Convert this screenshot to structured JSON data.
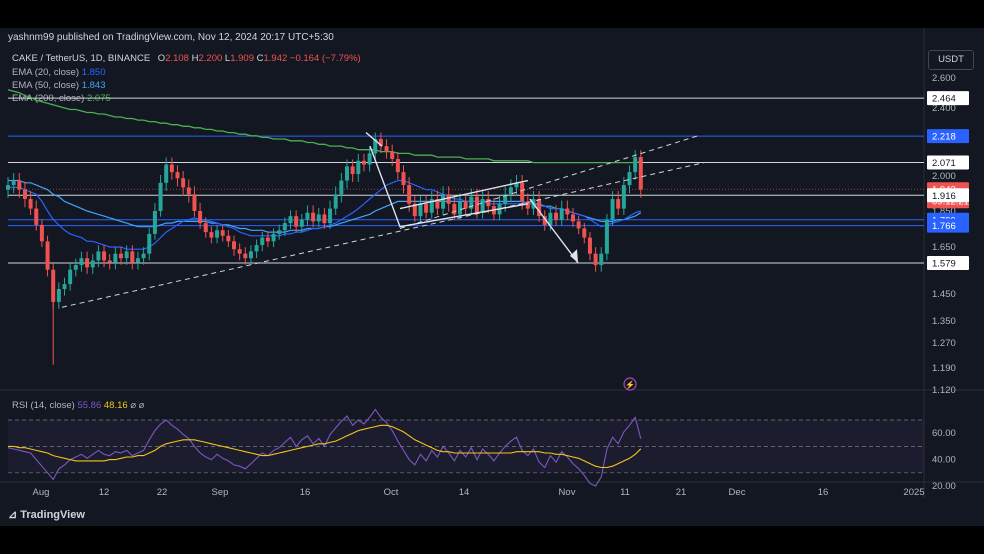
{
  "header": {
    "published": "yashnm99 published on TradingView.com, Nov 12, 2024 20:17 UTC+5:30"
  },
  "symbol_line": {
    "symbol": "CAKE / TetherUS, 1D, BINANCE",
    "open_label": "O",
    "open": "2.108",
    "high_label": "H",
    "high": "2.200",
    "low_label": "L",
    "low": "1.909",
    "close_label": "C",
    "close": "1.942",
    "change": "−0.164 (−7.79%)"
  },
  "legend": [
    {
      "label": "EMA (20, close)",
      "value": "1.850",
      "color": "#2962ff"
    },
    {
      "label": "EMA (50, close)",
      "value": "1.843",
      "color": "#42a5f5"
    },
    {
      "label": "EMA (200, close)",
      "value": "2.075",
      "color": "#4caf50"
    }
  ],
  "currency": "USDT",
  "rsi_legend": {
    "label": "RSI (14, close)",
    "rsi": "55.86",
    "ma": "48.16",
    "extra": "⌀ ⌀"
  },
  "brand": "TradingView",
  "colors": {
    "up": "#26a69a",
    "down": "#ef5350",
    "ema200": "#4caf50",
    "ema50": "#42a5f5",
    "ema20": "#2962ff",
    "rsi": "#7e57c2",
    "rsi_ma": "#f5c518"
  },
  "chart_data": {
    "type": "candlestick",
    "y_axis_ticks": [
      "2.600",
      "2.400",
      "2.200",
      "2.000",
      "1.850",
      "1.650",
      "1.450",
      "1.350",
      "1.270",
      "1.190",
      "1.120"
    ],
    "rsi_ticks": [
      "60.00",
      "40.00",
      "20.00"
    ],
    "x_axis_ticks": [
      "Aug",
      "12",
      "22",
      "Sep",
      "16",
      "Oct",
      "14",
      "Nov",
      "11",
      "21",
      "Dec",
      "16",
      "2025"
    ],
    "price_labels": [
      {
        "text": "2.464",
        "kind": "white"
      },
      {
        "text": "2.218",
        "kind": "blue"
      },
      {
        "text": "2.071",
        "kind": "white"
      },
      {
        "text": "1.942",
        "kind": "red"
      },
      {
        "text": "09:12:21",
        "kind": "red"
      },
      {
        "text": "1.916",
        "kind": "white"
      },
      {
        "text": "1.799",
        "kind": "blue"
      },
      {
        "text": "1.766",
        "kind": "blue"
      },
      {
        "text": "1.579",
        "kind": "white"
      }
    ],
    "horizontal_levels": [
      2.464,
      2.218,
      2.071,
      1.916,
      1.799,
      1.766,
      1.579
    ],
    "closes": [
      1.96,
      1.98,
      1.94,
      1.9,
      1.86,
      1.77,
      1.68,
      1.55,
      1.42,
      1.47,
      1.49,
      1.55,
      1.57,
      1.6,
      1.56,
      1.59,
      1.63,
      1.59,
      1.58,
      1.62,
      1.6,
      1.63,
      1.58,
      1.6,
      1.62,
      1.72,
      1.85,
      1.97,
      2.06,
      2.02,
      1.99,
      1.95,
      1.92,
      1.85,
      1.78,
      1.73,
      1.7,
      1.74,
      1.71,
      1.68,
      1.64,
      1.62,
      1.6,
      1.63,
      1.66,
      1.7,
      1.68,
      1.72,
      1.74,
      1.78,
      1.82,
      1.76,
      1.8,
      1.84,
      1.79,
      1.83,
      1.78,
      1.86,
      1.92,
      1.98,
      2.05,
      2.01,
      2.08,
      2.06,
      2.12,
      2.2,
      2.16,
      2.13,
      2.09,
      2.02,
      1.96,
      1.88,
      1.82,
      1.88,
      1.84,
      1.9,
      1.86,
      1.92,
      1.88,
      1.83,
      1.89,
      1.86,
      1.91,
      1.84,
      1.9,
      1.87,
      1.83,
      1.88,
      1.92,
      1.95,
      1.97,
      1.89,
      1.86,
      1.9,
      1.82,
      1.77,
      1.84,
      1.8,
      1.86,
      1.83,
      1.79,
      1.75,
      1.7,
      1.62,
      1.57,
      1.62,
      1.8,
      1.9,
      1.86,
      1.96,
      2.02,
      2.1,
      1.94
    ],
    "ema20": [
      1.95,
      1.95,
      1.95,
      1.94,
      1.93,
      1.92,
      1.89,
      1.85,
      1.8,
      1.77,
      1.74,
      1.72,
      1.71,
      1.7,
      1.68,
      1.68,
      1.67,
      1.66,
      1.65,
      1.65,
      1.65,
      1.64,
      1.64,
      1.64,
      1.64,
      1.65,
      1.67,
      1.7,
      1.73,
      1.75,
      1.77,
      1.79,
      1.8,
      1.81,
      1.8,
      1.8,
      1.79,
      1.78,
      1.77,
      1.76,
      1.75,
      1.73,
      1.72,
      1.71,
      1.71,
      1.71,
      1.71,
      1.71,
      1.71,
      1.72,
      1.72,
      1.73,
      1.73,
      1.74,
      1.75,
      1.75,
      1.76,
      1.77,
      1.78,
      1.8,
      1.82,
      1.84,
      1.86,
      1.88,
      1.9,
      1.92,
      1.94,
      1.96,
      1.97,
      1.98,
      1.98,
      1.97,
      1.96,
      1.95,
      1.94,
      1.94,
      1.93,
      1.92,
      1.91,
      1.9,
      1.9,
      1.89,
      1.89,
      1.89,
      1.89,
      1.88,
      1.88,
      1.88,
      1.88,
      1.88,
      1.88,
      1.88,
      1.88,
      1.88,
      1.87,
      1.87,
      1.86,
      1.86,
      1.86,
      1.85,
      1.84,
      1.83,
      1.82,
      1.8,
      1.78,
      1.76,
      1.77,
      1.78,
      1.79,
      1.8,
      1.82,
      1.84,
      1.85
    ],
    "ema50": [
      1.98,
      1.98,
      1.98,
      1.97,
      1.97,
      1.96,
      1.95,
      1.94,
      1.92,
      1.91,
      1.89,
      1.88,
      1.87,
      1.86,
      1.85,
      1.84,
      1.83,
      1.82,
      1.81,
      1.8,
      1.79,
      1.78,
      1.77,
      1.76,
      1.76,
      1.76,
      1.76,
      1.77,
      1.78,
      1.78,
      1.79,
      1.79,
      1.79,
      1.79,
      1.79,
      1.79,
      1.78,
      1.78,
      1.77,
      1.77,
      1.76,
      1.75,
      1.75,
      1.74,
      1.74,
      1.74,
      1.73,
      1.73,
      1.73,
      1.73,
      1.74,
      1.74,
      1.74,
      1.75,
      1.75,
      1.75,
      1.76,
      1.76,
      1.77,
      1.78,
      1.79,
      1.8,
      1.81,
      1.82,
      1.83,
      1.85,
      1.86,
      1.87,
      1.88,
      1.89,
      1.89,
      1.89,
      1.89,
      1.89,
      1.89,
      1.89,
      1.89,
      1.89,
      1.89,
      1.89,
      1.89,
      1.89,
      1.89,
      1.89,
      1.89,
      1.89,
      1.89,
      1.89,
      1.89,
      1.89,
      1.89,
      1.89,
      1.88,
      1.88,
      1.88,
      1.87,
      1.87,
      1.86,
      1.86,
      1.85,
      1.84,
      1.83,
      1.82,
      1.81,
      1.8,
      1.79,
      1.79,
      1.79,
      1.8,
      1.8,
      1.81,
      1.82,
      1.84
    ],
    "ema200": [
      2.52,
      2.51,
      2.5,
      2.48,
      2.47,
      2.45,
      2.44,
      2.43,
      2.42,
      2.41,
      2.4,
      2.39,
      2.39,
      2.38,
      2.37,
      2.37,
      2.36,
      2.36,
      2.35,
      2.34,
      2.34,
      2.33,
      2.33,
      2.32,
      2.32,
      2.31,
      2.31,
      2.3,
      2.3,
      2.29,
      2.29,
      2.28,
      2.28,
      2.27,
      2.27,
      2.26,
      2.26,
      2.25,
      2.25,
      2.24,
      2.24,
      2.23,
      2.23,
      2.22,
      2.22,
      2.21,
      2.21,
      2.2,
      2.2,
      2.2,
      2.19,
      2.19,
      2.19,
      2.18,
      2.18,
      2.17,
      2.17,
      2.16,
      2.16,
      2.16,
      2.15,
      2.15,
      2.14,
      2.14,
      2.14,
      2.14,
      2.13,
      2.13,
      2.13,
      2.12,
      2.12,
      2.12,
      2.11,
      2.11,
      2.11,
      2.11,
      2.1,
      2.1,
      2.1,
      2.1,
      2.1,
      2.09,
      2.09,
      2.09,
      2.09,
      2.09,
      2.08,
      2.08,
      2.08,
      2.08,
      2.08,
      2.08,
      2.08,
      2.07,
      2.07,
      2.07,
      2.07,
      2.07,
      2.07,
      2.07,
      2.07,
      2.07,
      2.07,
      2.07,
      2.07,
      2.07,
      2.07,
      2.07,
      2.07,
      2.07,
      2.07,
      2.07,
      2.075
    ],
    "rsi": [
      49,
      48,
      47,
      46,
      45,
      40,
      35,
      30,
      25,
      33,
      36,
      40,
      42,
      44,
      41,
      44,
      47,
      44,
      43,
      46,
      45,
      47,
      43,
      45,
      47,
      55,
      62,
      67,
      70,
      66,
      63,
      59,
      56,
      50,
      45,
      42,
      40,
      44,
      41,
      39,
      36,
      35,
      33,
      37,
      41,
      45,
      43,
      47,
      49,
      53,
      57,
      50,
      55,
      58,
      52,
      56,
      50,
      59,
      64,
      69,
      73,
      66,
      70,
      67,
      72,
      78,
      72,
      68,
      62,
      54,
      47,
      40,
      36,
      44,
      39,
      47,
      42,
      50,
      45,
      39,
      47,
      42,
      49,
      40,
      48,
      44,
      39,
      45,
      50,
      54,
      57,
      47,
      43,
      48,
      38,
      34,
      43,
      38,
      46,
      42,
      37,
      33,
      28,
      22,
      20,
      27,
      48,
      57,
      52,
      61,
      66,
      72,
      55.86
    ],
    "rsi_ma": [
      50,
      50,
      49,
      49,
      48,
      47,
      46,
      45,
      43,
      42,
      41,
      40,
      39,
      39,
      39,
      39,
      39,
      39,
      40,
      40,
      41,
      42,
      42,
      43,
      43,
      45,
      47,
      50,
      52,
      53,
      54,
      55,
      55,
      55,
      54,
      53,
      52,
      51,
      50,
      49,
      48,
      47,
      46,
      45,
      44,
      43,
      43,
      44,
      45,
      46,
      47,
      48,
      49,
      50,
      51,
      52,
      52,
      53,
      54,
      56,
      58,
      60,
      62,
      63,
      64,
      65,
      66,
      66,
      65,
      63,
      61,
      58,
      55,
      53,
      51,
      49,
      47,
      46,
      46,
      45,
      45,
      45,
      45,
      45,
      45,
      45,
      45,
      45,
      45,
      45,
      46,
      46,
      46,
      46,
      46,
      45,
      45,
      44,
      44,
      43,
      42,
      41,
      39,
      37,
      35,
      34,
      34,
      35,
      37,
      39,
      41,
      44,
      48.16
    ]
  }
}
